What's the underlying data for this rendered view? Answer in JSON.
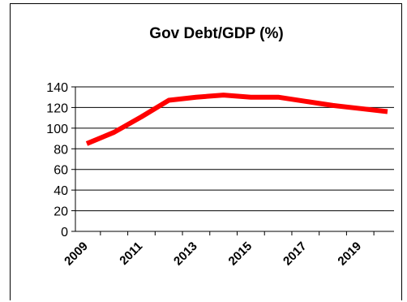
{
  "chart_data": {
    "type": "line",
    "title": "Gov Debt/GDP (%)",
    "xlabel": "",
    "ylabel": "",
    "ylim": [
      0,
      140
    ],
    "yticks": [
      0,
      20,
      40,
      60,
      80,
      100,
      120,
      140
    ],
    "x": [
      2009,
      2010,
      2011,
      2012,
      2013,
      2014,
      2015,
      2016,
      2017,
      2018,
      2019,
      2020
    ],
    "x_tick_labels": [
      "2009",
      "2011",
      "2013",
      "2015",
      "2017",
      "2019"
    ],
    "grid": "horizontal",
    "legend": "none",
    "series": [
      {
        "name": "",
        "color": "#ff0000",
        "values": [
          85,
          96,
          111,
          127,
          130,
          132,
          130,
          130,
          126,
          122,
          119,
          116
        ]
      }
    ]
  }
}
